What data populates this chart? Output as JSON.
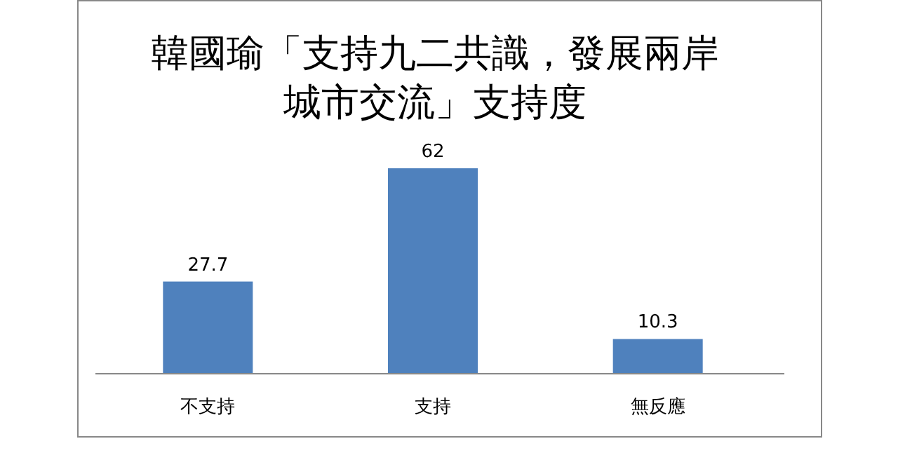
{
  "chart_data": {
    "type": "bar",
    "title": "韓國瑜「支持九二共識，發展兩岸城市交流」支持度",
    "categories": [
      "不支持",
      "支持",
      "無反應"
    ],
    "values": [
      27.7,
      62,
      10.3
    ],
    "color": "#4f81bd",
    "data_labels": true
  }
}
